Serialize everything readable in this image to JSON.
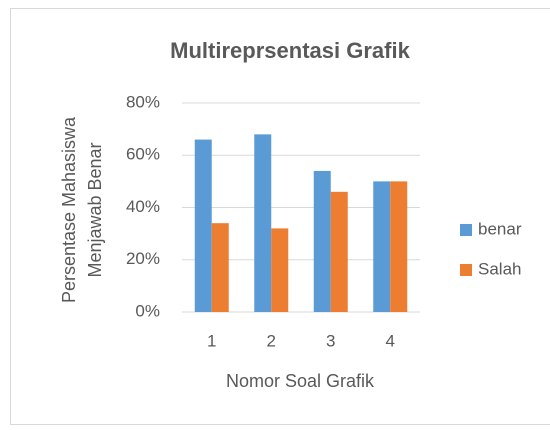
{
  "chart_data": {
    "type": "bar",
    "title": "Multireprsentasi Grafik",
    "xlabel": "Nomor Soal Grafik",
    "ylabel": [
      "Persentase  Mahasiswa",
      "Menjawab Benar"
    ],
    "categories": [
      "1",
      "2",
      "3",
      "4"
    ],
    "series": [
      {
        "name": "benar",
        "color": "#5b9bd5",
        "values": [
          66,
          68,
          54,
          50
        ]
      },
      {
        "name": "Salah",
        "color": "#ed7d31",
        "values": [
          34,
          32,
          46,
          50
        ]
      }
    ],
    "ylim": [
      0,
      80
    ],
    "yticks": [
      {
        "value": 0,
        "label": "0%"
      },
      {
        "value": 20,
        "label": "20%"
      },
      {
        "value": 40,
        "label": "40%"
      },
      {
        "value": 60,
        "label": "60%"
      },
      {
        "value": 80,
        "label": "80%"
      }
    ],
    "grid": true,
    "legend": "right"
  }
}
